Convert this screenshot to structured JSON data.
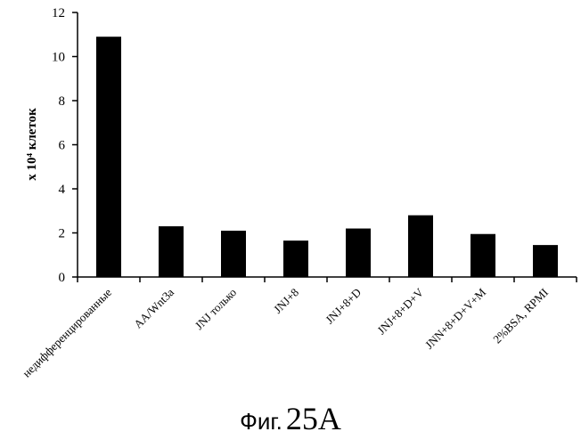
{
  "chart_data": {
    "type": "bar",
    "categories": [
      "недифференцированные",
      "AA/Wnt3a",
      "JNJ только",
      "JNJ+8",
      "JNJ+8+D",
      "JNJ+8+D+V",
      "JNN+8+D+V+M",
      "2%BSA, RPMI"
    ],
    "values": [
      10.9,
      2.3,
      2.1,
      1.65,
      2.2,
      2.8,
      1.95,
      1.45
    ],
    "ylabel": "x 10⁴ клеток",
    "ylim": [
      0,
      12
    ],
    "yticks": [
      "0",
      "2",
      "4",
      "6",
      "8",
      "10",
      "12"
    ],
    "bar_color": "#000000",
    "grid": false,
    "legend": "none"
  },
  "caption": {
    "prefix": "Фиг.",
    "number": "25A"
  }
}
